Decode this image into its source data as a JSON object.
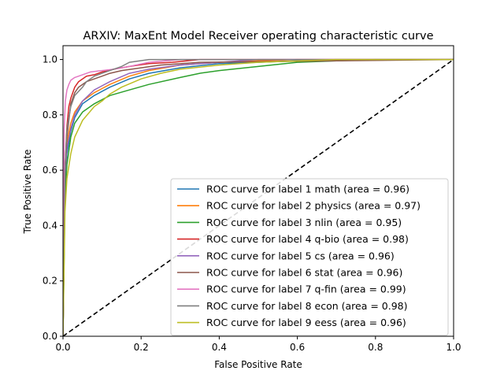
{
  "chart_data": {
    "type": "line",
    "title": "ARXIV: MaxEnt Model Receiver operating characteristic curve",
    "xlabel": "False Positive Rate",
    "ylabel": "True Positive Rate",
    "xlim": [
      0.0,
      1.0
    ],
    "ylim": [
      0.0,
      1.05
    ],
    "xticks": [
      "0.0",
      "0.2",
      "0.4",
      "0.6",
      "0.8",
      "1.0"
    ],
    "yticks": [
      "0.0",
      "0.2",
      "0.4",
      "0.6",
      "0.8",
      "1.0"
    ],
    "grid": false,
    "legend_position": "lower-right",
    "reference_line": {
      "style": "dashed",
      "color": "#000000",
      "x": [
        0,
        1
      ],
      "y": [
        0,
        1
      ]
    },
    "series": [
      {
        "name": "ROC curve for label 1 math (area = 0.96)",
        "color": "#1f77b4",
        "x": [
          0,
          0.005,
          0.01,
          0.02,
          0.03,
          0.05,
          0.08,
          0.12,
          0.17,
          0.22,
          0.3,
          0.4,
          0.5,
          0.6,
          0.7,
          1.0
        ],
        "y": [
          0,
          0.55,
          0.66,
          0.74,
          0.79,
          0.84,
          0.87,
          0.9,
          0.93,
          0.95,
          0.97,
          0.985,
          0.99,
          0.995,
          1.0,
          1.0
        ]
      },
      {
        "name": "ROC curve for label 2 physics (area = 0.97)",
        "color": "#ff7f0e",
        "x": [
          0,
          0.005,
          0.01,
          0.02,
          0.03,
          0.05,
          0.08,
          0.12,
          0.17,
          0.22,
          0.3,
          0.4,
          0.5,
          0.6,
          1.0
        ],
        "y": [
          0,
          0.6,
          0.7,
          0.77,
          0.81,
          0.85,
          0.88,
          0.91,
          0.94,
          0.96,
          0.98,
          0.99,
          0.995,
          1.0,
          1.0
        ]
      },
      {
        "name": "ROC curve for label 3 nlin (area = 0.95)",
        "color": "#2ca02c",
        "x": [
          0,
          0.005,
          0.01,
          0.02,
          0.03,
          0.05,
          0.08,
          0.12,
          0.17,
          0.22,
          0.3,
          0.35,
          0.4,
          0.5,
          0.6,
          0.7,
          0.8,
          1.0
        ],
        "y": [
          0,
          0.5,
          0.62,
          0.72,
          0.77,
          0.81,
          0.84,
          0.87,
          0.89,
          0.91,
          0.935,
          0.95,
          0.96,
          0.975,
          0.99,
          0.995,
          1.0,
          1.0
        ]
      },
      {
        "name": "ROC curve for label 4 q-bio (area = 0.98)",
        "color": "#d62728",
        "x": [
          0,
          0.005,
          0.01,
          0.015,
          0.02,
          0.03,
          0.04,
          0.05,
          0.06,
          0.08,
          0.1,
          0.13,
          0.17,
          0.22,
          0.28,
          0.35,
          1.0
        ],
        "y": [
          0,
          0.6,
          0.76,
          0.83,
          0.86,
          0.9,
          0.92,
          0.93,
          0.94,
          0.945,
          0.955,
          0.965,
          0.975,
          0.985,
          0.99,
          1.0,
          1.0
        ]
      },
      {
        "name": "ROC curve for label 5 cs (area = 0.96)",
        "color": "#9467bd",
        "x": [
          0,
          0.005,
          0.01,
          0.02,
          0.03,
          0.05,
          0.08,
          0.12,
          0.17,
          0.22,
          0.3,
          0.4,
          0.5,
          1.0
        ],
        "y": [
          0,
          0.58,
          0.68,
          0.75,
          0.8,
          0.85,
          0.89,
          0.92,
          0.95,
          0.965,
          0.98,
          0.99,
          1.0,
          1.0
        ]
      },
      {
        "name": "ROC curve for label 6 stat (area = 0.96)",
        "color": "#8c564b",
        "x": [
          0,
          0.005,
          0.01,
          0.015,
          0.02,
          0.03,
          0.04,
          0.06,
          0.08,
          0.1,
          0.12,
          0.15,
          0.2,
          0.25,
          0.35,
          1.0
        ],
        "y": [
          0,
          0.6,
          0.72,
          0.78,
          0.84,
          0.88,
          0.9,
          0.92,
          0.93,
          0.94,
          0.95,
          0.96,
          0.97,
          0.98,
          0.99,
          1.0
        ]
      },
      {
        "name": "ROC curve for label 7 q-fin (area = 0.99)",
        "color": "#e377c2",
        "x": [
          0,
          0.003,
          0.006,
          0.01,
          0.015,
          0.02,
          0.03,
          0.05,
          0.07,
          0.1,
          0.13,
          0.17,
          0.22,
          0.3,
          1.0
        ],
        "y": [
          0,
          0.75,
          0.85,
          0.89,
          0.91,
          0.925,
          0.935,
          0.945,
          0.955,
          0.96,
          0.965,
          0.975,
          0.99,
          1.0,
          1.0
        ]
      },
      {
        "name": "ROC curve for label 8 econ (area = 0.98)",
        "color": "#7f7f7f",
        "x": [
          0,
          0.005,
          0.01,
          0.02,
          0.03,
          0.05,
          0.06,
          0.07,
          0.08,
          0.1,
          0.12,
          0.15,
          0.17,
          0.22,
          1.0
        ],
        "y": [
          0,
          0.6,
          0.75,
          0.83,
          0.87,
          0.9,
          0.92,
          0.93,
          0.94,
          0.95,
          0.96,
          0.975,
          0.99,
          1.0,
          1.0
        ]
      },
      {
        "name": "ROC curve for label 9 eess (area = 0.96)",
        "color": "#bcbd22",
        "x": [
          0,
          0.005,
          0.01,
          0.02,
          0.03,
          0.05,
          0.08,
          0.1,
          0.12,
          0.15,
          0.2,
          0.25,
          0.3,
          0.4,
          0.5,
          0.7,
          1.0
        ],
        "y": [
          0,
          0.45,
          0.57,
          0.66,
          0.72,
          0.78,
          0.83,
          0.85,
          0.875,
          0.9,
          0.93,
          0.95,
          0.965,
          0.98,
          0.99,
          1.0,
          1.0
        ]
      }
    ]
  }
}
